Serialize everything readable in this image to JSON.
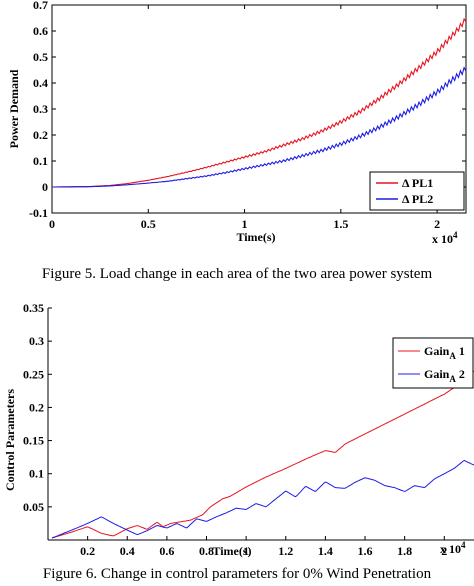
{
  "captions": {
    "figure5": "Figure 5. Load change in each area of the two area power system",
    "figure6": "Figure 6. Change in control parameters for 0% Wind Penetration"
  },
  "chart_data": [
    {
      "type": "line",
      "title": "",
      "xlabel": "Time(s)",
      "ylabel": "Power Demand",
      "x_multiplier_label": "x 10",
      "x_multiplier_exponent": "4",
      "xlim": [
        0,
        2.15
      ],
      "ylim": [
        -0.1,
        0.7
      ],
      "xticks": [
        0,
        0.5,
        1,
        1.5,
        2
      ],
      "xtick_labels": [
        "0",
        "0.5",
        "1",
        "1.5",
        "2"
      ],
      "yticks": [
        -0.1,
        0,
        0.1,
        0.2,
        0.3,
        0.4,
        0.5,
        0.6,
        0.7
      ],
      "ytick_labels": [
        "-0.1",
        "0",
        "0.1",
        "0.2",
        "0.3",
        "0.4",
        "0.5",
        "0.6",
        "0.7"
      ],
      "grid": false,
      "legend_position": "bottom-right",
      "series": [
        {
          "name": "Δ PL1",
          "color": "#e8141e",
          "x": [
            0,
            0.2,
            0.3,
            0.4,
            0.5,
            0.6,
            0.7,
            0.8,
            0.9,
            1.0,
            1.1,
            1.2,
            1.3,
            1.4,
            1.5,
            1.6,
            1.7,
            1.8,
            1.9,
            2.0,
            2.1,
            2.15
          ],
          "y": [
            0,
            0.002,
            0.006,
            0.014,
            0.026,
            0.04,
            0.057,
            0.075,
            0.095,
            0.115,
            0.135,
            0.16,
            0.185,
            0.215,
            0.25,
            0.29,
            0.34,
            0.395,
            0.455,
            0.52,
            0.6,
            0.645
          ]
        },
        {
          "name": "Δ PL2",
          "color": "#1c1ce8",
          "x": [
            0,
            0.2,
            0.3,
            0.4,
            0.5,
            0.6,
            0.7,
            0.8,
            0.9,
            1.0,
            1.1,
            1.2,
            1.3,
            1.4,
            1.5,
            1.6,
            1.7,
            1.8,
            1.9,
            2.0,
            2.1,
            2.15
          ],
          "y": [
            0,
            0.001,
            0.004,
            0.009,
            0.015,
            0.022,
            0.032,
            0.042,
            0.055,
            0.07,
            0.085,
            0.1,
            0.12,
            0.14,
            0.165,
            0.195,
            0.23,
            0.27,
            0.315,
            0.365,
            0.425,
            0.455
          ]
        }
      ]
    },
    {
      "type": "line",
      "title": "",
      "xlabel": "Time(s)",
      "ylabel": "Control Parameters",
      "x_multiplier_label": "x 10",
      "x_multiplier_exponent": "4",
      "xlim": [
        0,
        2.15
      ],
      "ylim": [
        0,
        0.35
      ],
      "xticks": [
        0.2,
        0.4,
        0.6,
        0.8,
        1,
        1.2,
        1.4,
        1.6,
        1.8,
        2
      ],
      "xtick_labels": [
        "0.2",
        "0.4",
        "0.6",
        "0.8",
        "1",
        "1.2",
        "1.4",
        "1.6",
        "1.8",
        "2"
      ],
      "yticks": [
        0.05,
        0.1,
        0.15,
        0.2,
        0.25,
        0.3,
        0.35
      ],
      "ytick_labels": [
        "0.05",
        "0.1",
        "0.15",
        "0.2",
        "0.25",
        "0.3",
        "0.35"
      ],
      "grid": false,
      "legend_position": "top-right",
      "series": [
        {
          "name": "Gain",
          "subscript": "A",
          "index": "1",
          "color": "#e8141e",
          "x": [
            0.02,
            0.12,
            0.2,
            0.27,
            0.33,
            0.4,
            0.45,
            0.5,
            0.55,
            0.58,
            0.62,
            0.68,
            0.72,
            0.78,
            0.82,
            0.88,
            0.92,
            1.0,
            1.1,
            1.2,
            1.3,
            1.4,
            1.45,
            1.5,
            1.6,
            1.7,
            1.8,
            1.9,
            2.0,
            2.1,
            2.15
          ],
          "y": [
            0.003,
            0.012,
            0.02,
            0.01,
            0.006,
            0.017,
            0.022,
            0.016,
            0.027,
            0.02,
            0.025,
            0.028,
            0.03,
            0.038,
            0.05,
            0.062,
            0.066,
            0.08,
            0.095,
            0.108,
            0.122,
            0.135,
            0.132,
            0.145,
            0.16,
            0.175,
            0.19,
            0.205,
            0.22,
            0.24,
            0.255
          ]
        },
        {
          "name": "Gain",
          "subscript": "A",
          "index": "2",
          "color": "#1c1ce8",
          "x": [
            0.02,
            0.12,
            0.2,
            0.27,
            0.33,
            0.4,
            0.45,
            0.5,
            0.55,
            0.6,
            0.65,
            0.7,
            0.75,
            0.8,
            0.85,
            0.9,
            0.95,
            1.0,
            1.05,
            1.1,
            1.15,
            1.2,
            1.25,
            1.3,
            1.35,
            1.4,
            1.45,
            1.5,
            1.55,
            1.6,
            1.65,
            1.7,
            1.75,
            1.8,
            1.85,
            1.9,
            1.95,
            2.0,
            2.05,
            2.1,
            2.15
          ],
          "y": [
            0.003,
            0.015,
            0.025,
            0.035,
            0.025,
            0.015,
            0.008,
            0.014,
            0.022,
            0.018,
            0.025,
            0.018,
            0.032,
            0.028,
            0.035,
            0.041,
            0.048,
            0.046,
            0.055,
            0.05,
            0.062,
            0.074,
            0.065,
            0.081,
            0.073,
            0.088,
            0.079,
            0.078,
            0.087,
            0.094,
            0.09,
            0.082,
            0.079,
            0.073,
            0.082,
            0.079,
            0.092,
            0.1,
            0.108,
            0.12,
            0.113
          ]
        }
      ]
    }
  ]
}
